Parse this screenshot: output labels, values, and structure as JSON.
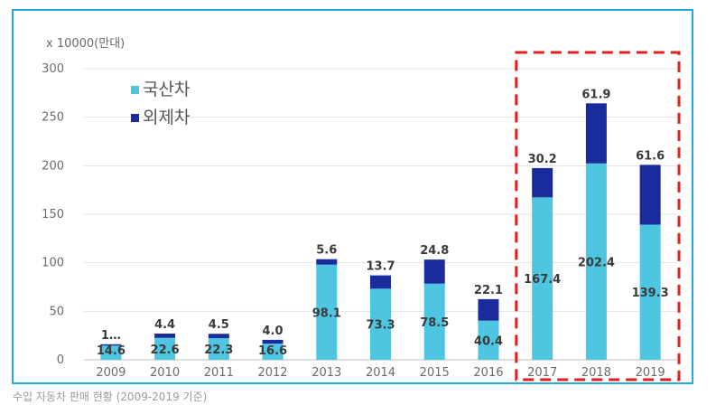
{
  "chart_data": {
    "type": "bar",
    "stacked": true,
    "ylabel": "x 10000(만대)",
    "ylim": [
      0,
      300
    ],
    "yticks": [
      0,
      50,
      100,
      150,
      200,
      250,
      300
    ],
    "categories": [
      "2009",
      "2010",
      "2011",
      "2012",
      "2013",
      "2014",
      "2015",
      "2016",
      "2017",
      "2018",
      "2019"
    ],
    "series": [
      {
        "name": "국산차",
        "color": "#4ec6e2",
        "values": [
          14.6,
          22.6,
          22.3,
          16.6,
          98.1,
          73.3,
          78.5,
          40.4,
          167.4,
          202.4,
          139.3
        ],
        "labels": [
          "14.6",
          "22.6",
          "22.3",
          "16.6",
          "98.1",
          "73.3",
          "78.5",
          "40.4",
          "167.4",
          "202.4",
          "139.3"
        ]
      },
      {
        "name": "외제차",
        "color": "#1a2b9c",
        "values": [
          1.4,
          4.4,
          4.5,
          4.0,
          5.6,
          13.7,
          24.8,
          22.1,
          30.2,
          61.9,
          61.6
        ],
        "labels": [
          "1…",
          "4.4",
          "4.5",
          "4.0",
          "5.6",
          "13.7",
          "24.8",
          "22.1",
          "30.2",
          "61.9",
          "61.6"
        ]
      }
    ],
    "grid": true,
    "legend": "top-left",
    "highlight": {
      "from": "2017",
      "to": "2019",
      "style": "red dashed box"
    }
  },
  "caption": "수입 자동차 판매 현황 (2009-2019 기준)"
}
